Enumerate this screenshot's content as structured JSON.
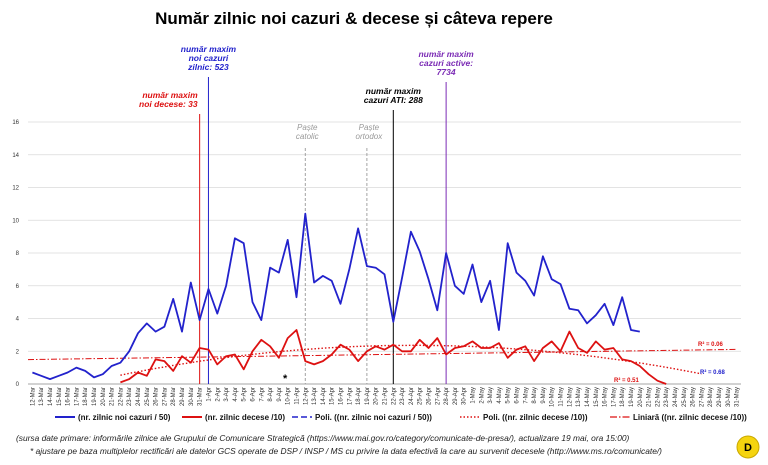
{
  "chart_data": {
    "type": "line",
    "title": "Număr zilnic noi cazuri & decese și câteva repere",
    "ylim": [
      0,
      16
    ],
    "y_ticks": [
      "0",
      "2",
      "4",
      "6",
      "8",
      "10",
      "12",
      "14",
      "16"
    ],
    "grid": true,
    "legend_position": "bottom",
    "categories": [
      "12-Mar",
      "13-Mar",
      "14-Mar",
      "15-Mar",
      "16-Mar",
      "17-Mar",
      "18-Mar",
      "19-Mar",
      "20-Mar",
      "21-Mar",
      "22-Mar",
      "23-Mar",
      "24-Mar",
      "25-Mar",
      "26-Mar",
      "27-Mar",
      "28-Mar",
      "29-Mar",
      "30-Mar",
      "31-Mar",
      "1-Apr",
      "2-Apr",
      "3-Apr",
      "4-Apr",
      "5-Apr",
      "6-Apr",
      "7-Apr",
      "8-Apr",
      "9-Apr",
      "10-Apr",
      "11-Apr",
      "12-Apr",
      "13-Apr",
      "14-Apr",
      "15-Apr",
      "16-Apr",
      "17-Apr",
      "18-Apr",
      "19-Apr",
      "20-Apr",
      "21-Apr",
      "22-Apr",
      "23-Apr",
      "24-Apr",
      "25-Apr",
      "26-Apr",
      "27-Apr",
      "28-Apr",
      "29-Apr",
      "30-Apr",
      "1-May",
      "2-May",
      "3-May",
      "4-May",
      "5-May",
      "6-May",
      "7-May",
      "8-May",
      "9-May",
      "10-May",
      "11-May",
      "12-May",
      "13-May",
      "14-May",
      "15-May",
      "16-May",
      "17-May",
      "18-May",
      "19-May",
      "20-May",
      "21-May",
      "22-May",
      "23-May",
      "24-May",
      "25-May",
      "26-May",
      "27-May",
      "28-May",
      "29-May",
      "30-May",
      "31-May"
    ],
    "series": [
      {
        "name": "(nr. zilnic noi cazuri / 50)",
        "color": "#2222cc",
        "values": [
          0.7,
          0.5,
          0.3,
          0.5,
          0.7,
          1.0,
          0.8,
          0.4,
          0.6,
          1.1,
          1.3,
          2.0,
          3.1,
          3.7,
          3.2,
          3.5,
          5.2,
          3.2,
          6.2,
          3.9,
          5.8,
          4.3,
          6.0,
          8.9,
          8.6,
          5.0,
          3.9,
          7.1,
          6.8,
          8.8,
          5.3,
          10.4,
          6.2,
          6.6,
          6.3,
          4.9,
          7.0,
          9.5,
          7.2,
          7.1,
          6.7,
          3.8,
          6.5,
          9.3,
          8.1,
          6.4,
          4.5,
          8.0,
          6.0,
          5.5,
          7.3,
          5.0,
          6.3,
          3.3,
          8.6,
          6.8,
          6.3,
          5.4,
          7.8,
          6.4,
          6.1,
          4.6,
          4.5,
          3.7,
          4.2,
          4.9,
          3.6,
          5.3,
          3.3,
          3.2,
          null,
          null,
          null,
          null,
          null,
          null,
          null,
          null,
          null,
          null,
          null
        ]
      },
      {
        "name": "(nr. zilnic decese /10)",
        "color": "#dd1111",
        "values": [
          null,
          null,
          null,
          null,
          null,
          null,
          null,
          null,
          null,
          null,
          0.1,
          0.3,
          0.7,
          0.5,
          1.5,
          1.4,
          0.8,
          1.7,
          1.3,
          2.2,
          2.1,
          1.2,
          1.7,
          1.8,
          0.9,
          2.0,
          2.7,
          2.3,
          1.6,
          2.8,
          3.3,
          1.4,
          1.2,
          1.4,
          1.8,
          2.4,
          2.1,
          1.4,
          2.0,
          2.3,
          2.1,
          2.4,
          2.0,
          2.0,
          2.7,
          2.2,
          2.8,
          1.8,
          2.2,
          2.3,
          2.6,
          2.2,
          2.2,
          2.5,
          1.6,
          2.1,
          2.3,
          1.4,
          2.2,
          2.6,
          2.0,
          3.2,
          2.2,
          1.9,
          2.6,
          2.1,
          2.2,
          1.5,
          1.4,
          1.1,
          0.6,
          0.2,
          0.0,
          null,
          null,
          null,
          null,
          null,
          null,
          null,
          null
        ]
      }
    ],
    "trendlines": [
      {
        "name": "Poli. ((nr. zilnic noi cazuri / 50))",
        "type": "polynomial",
        "r2": "R² = 0.68",
        "color": "#2222cc"
      },
      {
        "name": "Poli. ((nr. zilnic decese /10))",
        "type": "polynomial",
        "r2": "R² = 0.51",
        "color": "#dd1111"
      },
      {
        "name": "Liniară ((nr. zilnic decese /10))",
        "type": "linear",
        "r2": "R² = 0.06",
        "color": "#dd1111"
      }
    ],
    "annotations": [
      {
        "date": "31-Mar",
        "text": [
          "număr maxim",
          "noi decese: 33"
        ],
        "color": "#dd1111"
      },
      {
        "date": "1-Apr",
        "text": [
          "număr maxim",
          "noi cazuri",
          "zilnic: 523"
        ],
        "color": "#2222cc"
      },
      {
        "date": "12-Apr",
        "text": [
          "Paște",
          "catolic"
        ],
        "color": "#999999"
      },
      {
        "date": "19-Apr",
        "text": [
          "Paște",
          "ortodox"
        ],
        "color": "#999999"
      },
      {
        "date": "22-Apr",
        "text": [
          "număr maxim",
          "cazuri ATI: 288"
        ],
        "color": "#000000"
      },
      {
        "date": "28-Apr",
        "text": [
          "număr maxim",
          "cazuri active:",
          "7734"
        ],
        "color": "#7b2bb5"
      }
    ]
  },
  "legend": {
    "l1": "(nr. zilnic noi cazuri / 50)",
    "l2": "(nr. zilnic decese /10)",
    "l3": "Poli. ((nr. zilnic noi cazuri / 50))",
    "l4": "Poli. ((nr. zilnic decese /10))",
    "l5": "Liniară ((nr. zilnic decese /10))"
  },
  "footer": {
    "source": "(sursa date primare: informările zilnice ale Grupului de Comunicare Strategică (https://www.mai.gov.ro/category/comunicate-de-presa/), actualizare 19 mai, ora 15:00)",
    "note": "* ajustare pe baza multiplelor rectificări ale datelor GCS operate de DSP / INSP / MS cu privire la data efectivă la care au survenit decesele (http://www.ms.ro/comunicate/)",
    "asterisk": "*"
  },
  "badge": "D"
}
